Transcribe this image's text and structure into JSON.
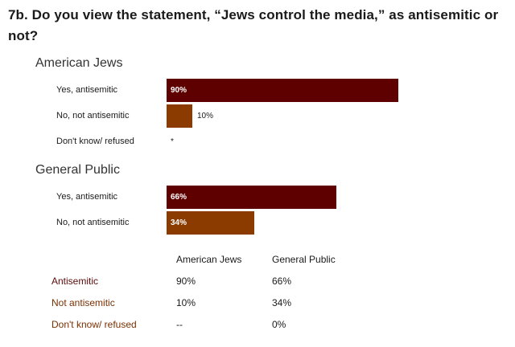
{
  "title": "7b. Do you view the statement, “Jews control the media,” as antisemitic or not?",
  "colors": {
    "yes": "#5e0000",
    "no": "#8b3a00",
    "rowlabel_yes": "#5a0a0a",
    "rowlabel_no": "#7a3000"
  },
  "chart_data": {
    "type": "bar",
    "orientation": "horizontal",
    "title": "7b. Do you view the statement, “Jews control the media,” as antisemitic or not?",
    "xlim": [
      0,
      100
    ],
    "groups": [
      {
        "name": "American Jews",
        "bars": [
          {
            "label": "Yes, antisemitic",
            "value": 90,
            "display": "90%",
            "color": "#5e0000"
          },
          {
            "label": "No, not antisemitic",
            "value": 10,
            "display": "10%",
            "color": "#8b3a00"
          },
          {
            "label": "Don't know/ refused",
            "value": 0,
            "display": "*",
            "color": "#8b3a00"
          }
        ]
      },
      {
        "name": "General Public",
        "bars": [
          {
            "label": "Yes, antisemitic",
            "value": 66,
            "display": "66%",
            "color": "#5e0000"
          },
          {
            "label": "No, not antisemitic",
            "value": 34,
            "display": "34%",
            "color": "#8b3a00"
          }
        ]
      }
    ]
  },
  "summary_table": {
    "columns": [
      "American Jews",
      "General Public"
    ],
    "rows": [
      {
        "label": "Antisemitic",
        "values": [
          "90%",
          "66%"
        ]
      },
      {
        "label": "Not antisemitic",
        "values": [
          "10%",
          "34%"
        ]
      },
      {
        "label": "Don't know/ refused",
        "values": [
          "--",
          "0%"
        ]
      }
    ]
  }
}
